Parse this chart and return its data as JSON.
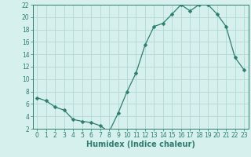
{
  "x": [
    0,
    1,
    2,
    3,
    4,
    5,
    6,
    7,
    8,
    9,
    10,
    11,
    12,
    13,
    14,
    15,
    16,
    17,
    18,
    19,
    20,
    21,
    22,
    23
  ],
  "y": [
    7.0,
    6.5,
    5.5,
    5.0,
    3.5,
    3.2,
    3.0,
    2.5,
    1.5,
    4.5,
    8.0,
    11.0,
    15.5,
    18.5,
    19.0,
    20.5,
    22.0,
    21.0,
    22.0,
    22.0,
    20.5,
    18.5,
    13.5,
    11.5
  ],
  "line_color": "#2e7d6e",
  "marker": "D",
  "marker_size": 2.5,
  "bg_color": "#d6f0ee",
  "grid_color": "#b0d8d4",
  "xlabel": "Humidex (Indice chaleur)",
  "ylim": [
    2,
    22
  ],
  "xlim": [
    -0.5,
    23.5
  ],
  "yticks": [
    2,
    4,
    6,
    8,
    10,
    12,
    14,
    16,
    18,
    20,
    22
  ],
  "xticks": [
    0,
    1,
    2,
    3,
    4,
    5,
    6,
    7,
    8,
    9,
    10,
    11,
    12,
    13,
    14,
    15,
    16,
    17,
    18,
    19,
    20,
    21,
    22,
    23
  ],
  "tick_label_fontsize": 5.5,
  "xlabel_fontsize": 7.0
}
